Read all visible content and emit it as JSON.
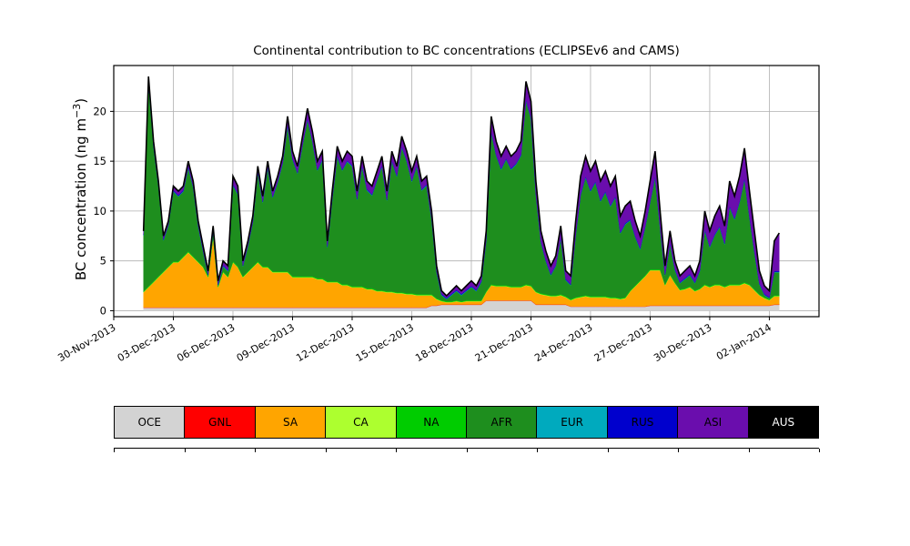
{
  "figure": {
    "title": "Continental contribution to BC concentrations (ECLIPSEv6 and CAMS)",
    "ylabel": {
      "prefix": "BC concentration (ng m",
      "sup": "−3",
      "suffix": ")"
    }
  },
  "chart_data": {
    "type": "area",
    "stacked": true,
    "title": "Continental contribution to BC concentrations (ECLIPSEv6 and CAMS)",
    "ylabel": "BC concentration (ng m−3)",
    "xlabel": "",
    "grid": true,
    "x_unit": "days since 30-Nov-2013 00:00",
    "x_range_days": [
      0,
      35.5
    ],
    "ylim": [
      -0.6,
      24.6
    ],
    "y_ticks": [
      0,
      5,
      10,
      15,
      20
    ],
    "x_ticks": [
      {
        "day": 0,
        "label": "30-Nov-2013"
      },
      {
        "day": 3,
        "label": "03-Dec-2013"
      },
      {
        "day": 6,
        "label": "06-Dec-2013"
      },
      {
        "day": 9,
        "label": "09-Dec-2013"
      },
      {
        "day": 12,
        "label": "12-Dec-2013"
      },
      {
        "day": 15,
        "label": "15-Dec-2013"
      },
      {
        "day": 18,
        "label": "18-Dec-2013"
      },
      {
        "day": 21,
        "label": "21-Dec-2013"
      },
      {
        "day": 24,
        "label": "24-Dec-2013"
      },
      {
        "day": 27,
        "label": "27-Dec-2013"
      },
      {
        "day": 30,
        "label": "30-Dec-2013"
      },
      {
        "day": 33,
        "label": "02-Jan-2014"
      }
    ],
    "t_start": 1.5,
    "t_step": 0.25,
    "n_points": 129,
    "total_line_color": "#000000",
    "grid_color": "#b0b0b0",
    "series": [
      {
        "name": "OCE",
        "color": "#d3d3d3",
        "text_color": "#000000",
        "values": [
          0.3,
          0.3,
          0.3,
          0.3,
          0.3,
          0.3,
          0.3,
          0.3,
          0.3,
          0.3,
          0.3,
          0.3,
          0.3,
          0.3,
          0.3,
          0.3,
          0.3,
          0.3,
          0.3,
          0.3,
          0.3,
          0.3,
          0.3,
          0.3,
          0.3,
          0.3,
          0.3,
          0.3,
          0.3,
          0.3,
          0.3,
          0.3,
          0.3,
          0.3,
          0.3,
          0.3,
          0.3,
          0.3,
          0.3,
          0.3,
          0.3,
          0.3,
          0.3,
          0.3,
          0.3,
          0.3,
          0.3,
          0.3,
          0.3,
          0.3,
          0.3,
          0.3,
          0.3,
          0.3,
          0.3,
          0.3,
          0.3,
          0.3,
          0.5,
          0.5,
          0.6,
          0.6,
          0.6,
          0.6,
          0.6,
          0.6,
          0.6,
          0.6,
          0.6,
          1.0,
          1.0,
          1.0,
          1.0,
          1.0,
          1.0,
          1.0,
          1.0,
          1.0,
          1.0,
          0.6,
          0.6,
          0.6,
          0.6,
          0.6,
          0.6,
          0.6,
          0.4,
          0.4,
          0.4,
          0.4,
          0.4,
          0.4,
          0.4,
          0.4,
          0.4,
          0.4,
          0.4,
          0.4,
          0.4,
          0.4,
          0.4,
          0.4,
          0.5,
          0.5,
          0.5,
          0.5,
          0.5,
          0.5,
          0.5,
          0.5,
          0.5,
          0.5,
          0.5,
          0.5,
          0.5,
          0.5,
          0.5,
          0.5,
          0.5,
          0.5,
          0.5,
          0.5,
          0.5,
          0.5,
          0.5,
          0.5,
          0.5,
          0.6,
          0.6
        ]
      },
      {
        "name": "GNL",
        "color": "#ff0000",
        "text_color": "#000000",
        "const": 0.03
      },
      {
        "name": "SA",
        "color": "#ffa500",
        "text_color": "#000000",
        "values": [
          1.5,
          2.0,
          2.5,
          3.0,
          3.5,
          4.0,
          4.5,
          4.5,
          5.0,
          5.5,
          5.0,
          4.5,
          4.0,
          3.0,
          7.0,
          2.0,
          3.5,
          3.0,
          4.5,
          4.0,
          3.0,
          3.5,
          4.0,
          4.5,
          4.0,
          4.0,
          3.5,
          3.5,
          3.5,
          3.5,
          3.0,
          3.0,
          3.0,
          3.0,
          3.0,
          2.8,
          2.8,
          2.5,
          2.5,
          2.5,
          2.2,
          2.2,
          2.0,
          2.0,
          2.0,
          1.8,
          1.8,
          1.6,
          1.6,
          1.5,
          1.5,
          1.4,
          1.4,
          1.3,
          1.3,
          1.2,
          1.2,
          1.2,
          1.0,
          0.6,
          0.3,
          0.2,
          0.2,
          0.3,
          0.2,
          0.3,
          0.3,
          0.3,
          0.3,
          0.8,
          1.5,
          1.4,
          1.4,
          1.4,
          1.3,
          1.3,
          1.3,
          1.5,
          1.4,
          1.2,
          1.0,
          0.9,
          0.8,
          0.8,
          0.9,
          0.7,
          0.6,
          0.8,
          0.9,
          1.0,
          0.9,
          0.9,
          0.9,
          0.9,
          0.8,
          0.8,
          0.7,
          0.8,
          1.5,
          2.0,
          2.5,
          3.0,
          3.5,
          3.5,
          3.5,
          2.0,
          3.0,
          2.2,
          1.5,
          1.6,
          1.8,
          1.4,
          1.6,
          2.0,
          1.8,
          2.0,
          2.0,
          1.8,
          2.0,
          2.0,
          2.0,
          2.2,
          2.0,
          1.5,
          1.0,
          0.7,
          0.5,
          0.8,
          0.8
        ]
      },
      {
        "name": "CA",
        "color": "#adff2f",
        "text_color": "#000000",
        "const": 0.04
      },
      {
        "name": "NA",
        "color": "#00cc00",
        "text_color": "#000000",
        "const": 0.08
      },
      {
        "name": "AFR",
        "color": "#1e8e1e",
        "text_color": "#000000",
        "values": [
          5.6,
          20.4,
          13.5,
          9.0,
          3.1,
          4.1,
          7.0,
          6.5,
          6.5,
          8.4,
          6.9,
          3.5,
          1.5,
          0.1,
          0.5,
          0.1,
          0.5,
          0.5,
          7.6,
          7.2,
          1.0,
          2.5,
          4.4,
          8.9,
          6.4,
          9.9,
          7.4,
          8.9,
          10.8,
          14.6,
          11.7,
          10.3,
          13.1,
          15.7,
          13.5,
          10.8,
          11.8,
          3.4,
          8.2,
          12.5,
          11.4,
          12.3,
          12.0,
          8.7,
          12.0,
          9.8,
          9.3,
          11.0,
          12.4,
          9.1,
          13.0,
          11.6,
          14.5,
          13.2,
          11.2,
          12.8,
          10.4,
          10.9,
          7.5,
          2.6,
          0.5,
          0.2,
          0.6,
          0.9,
          0.6,
          0.9,
          1.3,
          0.9,
          1.8,
          5.1,
          15.2,
          13.0,
          11.6,
          12.6,
          11.7,
          12.2,
          13.1,
          18.4,
          16.7,
          9.7,
          5.1,
          3.3,
          2.0,
          2.9,
          5.6,
          1.6,
          1.4,
          6.2,
          10.1,
          11.8,
          10.5,
          11.4,
          9.5,
          10.4,
          9.1,
          10.0,
          6.5,
          7.3,
          7.0,
          4.8,
          3.1,
          4.8,
          6.7,
          9.2,
          4.1,
          0.9,
          3.0,
          1.2,
          0.6,
          0.9,
          1.1,
          0.7,
          1.7,
          5.4,
          3.9,
          4.9,
          5.7,
          4.2,
          7.7,
          6.5,
          8.2,
          10.3,
          6.7,
          3.7,
          1.0,
          0.2,
          0.1,
          2.3,
          2.3
        ]
      },
      {
        "name": "EUR",
        "color": "#00aabe",
        "text_color": "#000000",
        "const": 0.05
      },
      {
        "name": "RUS",
        "color": "#0000cd",
        "text_color": "#000000",
        "const": 0.08
      },
      {
        "name": "ASI",
        "color": "#6a0dad",
        "text_color": "#000000",
        "values": [
          0.3,
          0.5,
          0.4,
          0.4,
          0.3,
          0.3,
          0.4,
          0.4,
          0.4,
          0.5,
          0.5,
          0.4,
          0.4,
          0.3,
          0.4,
          0.3,
          0.4,
          0.4,
          0.8,
          0.7,
          0.4,
          0.4,
          0.5,
          0.5,
          0.5,
          0.5,
          0.5,
          0.5,
          0.6,
          0.8,
          0.7,
          0.6,
          0.8,
          1.0,
          0.9,
          0.8,
          0.8,
          0.5,
          0.7,
          0.9,
          0.8,
          0.9,
          0.9,
          0.7,
          0.9,
          0.8,
          0.8,
          0.8,
          0.9,
          0.8,
          0.9,
          0.9,
          1.0,
          0.9,
          0.9,
          0.9,
          0.8,
          0.8,
          0.7,
          0.5,
          0.3,
          0.2,
          0.3,
          0.4,
          0.3,
          0.4,
          0.5,
          0.4,
          0.5,
          0.8,
          1.5,
          1.3,
          1.2,
          1.2,
          1.2,
          1.2,
          1.3,
          1.8,
          1.6,
          1.2,
          1.0,
          0.9,
          0.8,
          0.9,
          1.1,
          0.8,
          0.8,
          1.3,
          1.8,
          2.0,
          1.9,
          2.0,
          1.9,
          2.0,
          1.9,
          2.0,
          1.6,
          1.7,
          1.8,
          1.5,
          1.2,
          1.5,
          2.0,
          2.5,
          1.6,
          0.8,
          1.2,
          0.8,
          0.6,
          0.7,
          0.8,
          0.6,
          0.9,
          1.8,
          1.5,
          1.8,
          2.0,
          1.7,
          2.5,
          2.2,
          2.5,
          3.0,
          2.5,
          2.0,
          1.2,
          0.8,
          0.6,
          3.0,
          3.8
        ]
      },
      {
        "name": "AUS",
        "color": "#000000",
        "text_color": "#ffffff",
        "const": 0.02
      }
    ]
  }
}
